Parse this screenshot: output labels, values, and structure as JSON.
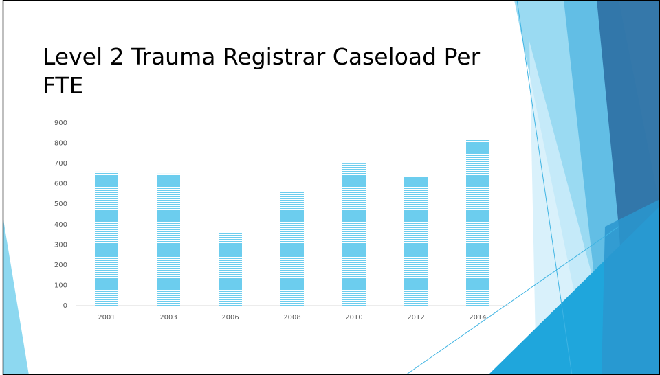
{
  "chart_data": {
    "type": "bar",
    "title": "Level 2 Trauma Registrar Caseload Per FTE",
    "categories": [
      "2001",
      "2003",
      "2006",
      "2008",
      "2010",
      "2012",
      "2014"
    ],
    "values": [
      660,
      650,
      360,
      565,
      700,
      635,
      820
    ],
    "color": "#6ccdee",
    "ylim": [
      0,
      900
    ],
    "yticks": [
      0,
      100,
      200,
      300,
      400,
      500,
      600,
      700,
      800,
      900
    ],
    "grid": false
  }
}
